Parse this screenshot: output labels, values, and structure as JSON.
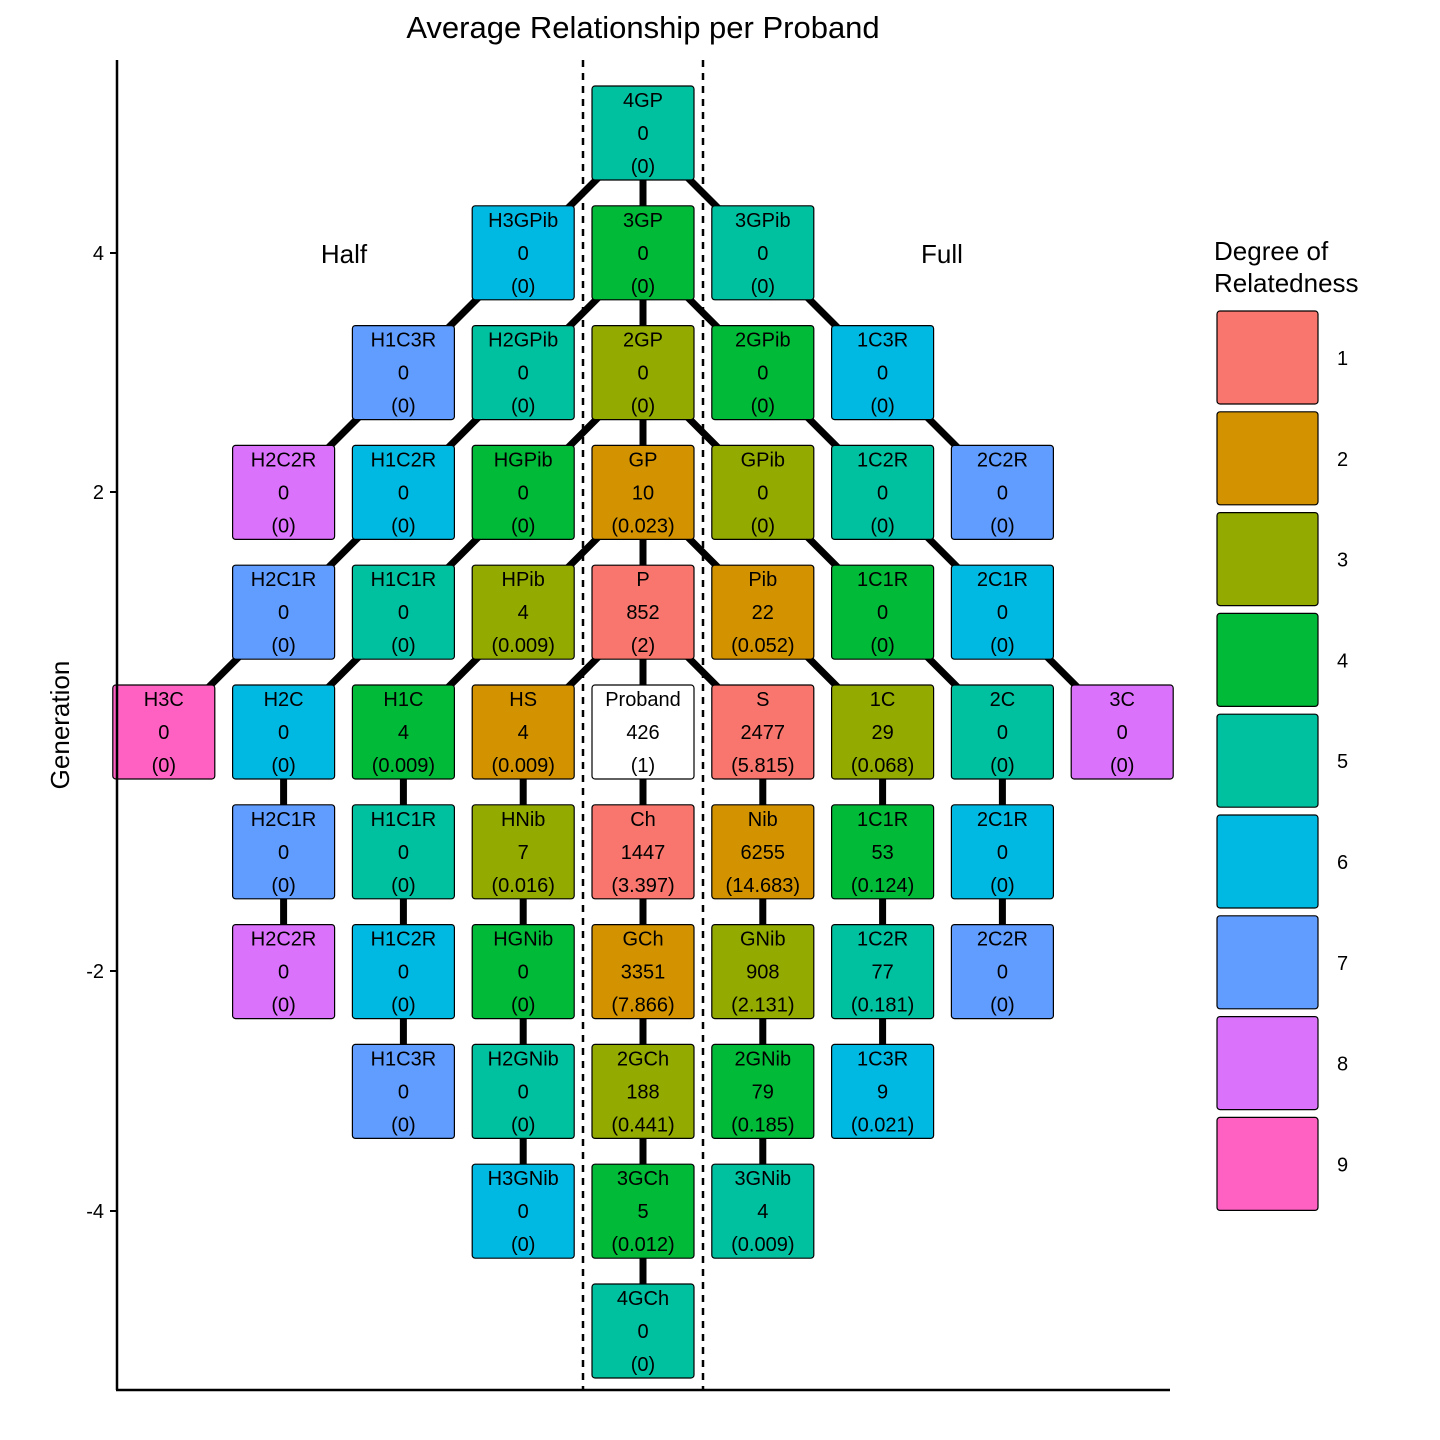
{
  "chart_data": {
    "type": "diagram",
    "title": "Average Relationship per Proband",
    "ylabel": "Generation",
    "y_ticks": [
      "4",
      "2",
      "-2",
      "-4"
    ],
    "side_labels": {
      "left": "Half",
      "right": "Full"
    },
    "legend": {
      "title_line1": "Degree of",
      "title_line2": "Relatedness",
      "items": [
        {
          "degree": 1,
          "label": "1",
          "color": "#F8766D"
        },
        {
          "degree": 2,
          "label": "2",
          "color": "#D39200"
        },
        {
          "degree": 3,
          "label": "3",
          "color": "#93AA00"
        },
        {
          "degree": 4,
          "label": "4",
          "color": "#00BA38"
        },
        {
          "degree": 5,
          "label": "5",
          "color": "#00C19F"
        },
        {
          "degree": 6,
          "label": "6",
          "color": "#00B9E3"
        },
        {
          "degree": 7,
          "label": "7",
          "color": "#619CFF"
        },
        {
          "degree": 8,
          "label": "8",
          "color": "#DB72FB"
        },
        {
          "degree": 9,
          "label": "9",
          "color": "#FF61C3"
        }
      ]
    },
    "nodes": [
      {
        "id": "4GP",
        "label": "4GP",
        "count": "0",
        "avg": "(0)",
        "col": 0,
        "gen": 5,
        "degree": 5
      },
      {
        "id": "H3GPib",
        "label": "H3GPib",
        "count": "0",
        "avg": "(0)",
        "col": -1,
        "gen": 4,
        "degree": 6
      },
      {
        "id": "3GP",
        "label": "3GP",
        "count": "0",
        "avg": "(0)",
        "col": 0,
        "gen": 4,
        "degree": 4
      },
      {
        "id": "3GPib",
        "label": "3GPib",
        "count": "0",
        "avg": "(0)",
        "col": 1,
        "gen": 4,
        "degree": 5
      },
      {
        "id": "H1C3R_up",
        "label": "H1C3R",
        "count": "0",
        "avg": "(0)",
        "col": -2,
        "gen": 3,
        "degree": 7
      },
      {
        "id": "H2GPib",
        "label": "H2GPib",
        "count": "0",
        "avg": "(0)",
        "col": -1,
        "gen": 3,
        "degree": 5
      },
      {
        "id": "2GP",
        "label": "2GP",
        "count": "0",
        "avg": "(0)",
        "col": 0,
        "gen": 3,
        "degree": 3
      },
      {
        "id": "2GPib",
        "label": "2GPib",
        "count": "0",
        "avg": "(0)",
        "col": 1,
        "gen": 3,
        "degree": 4
      },
      {
        "id": "1C3R_up",
        "label": "1C3R",
        "count": "0",
        "avg": "(0)",
        "col": 2,
        "gen": 3,
        "degree": 6
      },
      {
        "id": "H2C2R_up",
        "label": "H2C2R",
        "count": "0",
        "avg": "(0)",
        "col": -3,
        "gen": 2,
        "degree": 8
      },
      {
        "id": "H1C2R_up",
        "label": "H1C2R",
        "count": "0",
        "avg": "(0)",
        "col": -2,
        "gen": 2,
        "degree": 6
      },
      {
        "id": "HGPib",
        "label": "HGPib",
        "count": "0",
        "avg": "(0)",
        "col": -1,
        "gen": 2,
        "degree": 4
      },
      {
        "id": "GP",
        "label": "GP",
        "count": "10",
        "avg": "(0.023)",
        "col": 0,
        "gen": 2,
        "degree": 2
      },
      {
        "id": "GPib",
        "label": "GPib",
        "count": "0",
        "avg": "(0)",
        "col": 1,
        "gen": 2,
        "degree": 3
      },
      {
        "id": "1C2R_up",
        "label": "1C2R",
        "count": "0",
        "avg": "(0)",
        "col": 2,
        "gen": 2,
        "degree": 5
      },
      {
        "id": "2C2R_up",
        "label": "2C2R",
        "count": "0",
        "avg": "(0)",
        "col": 3,
        "gen": 2,
        "degree": 7
      },
      {
        "id": "H2C1R_up",
        "label": "H2C1R",
        "count": "0",
        "avg": "(0)",
        "col": -3,
        "gen": 1,
        "degree": 7
      },
      {
        "id": "H1C1R_up",
        "label": "H1C1R",
        "count": "0",
        "avg": "(0)",
        "col": -2,
        "gen": 1,
        "degree": 5
      },
      {
        "id": "HPib",
        "label": "HPib",
        "count": "4",
        "avg": "(0.009)",
        "col": -1,
        "gen": 1,
        "degree": 3
      },
      {
        "id": "P",
        "label": "P",
        "count": "852",
        "avg": "(2)",
        "col": 0,
        "gen": 1,
        "degree": 1
      },
      {
        "id": "Pib",
        "label": "Pib",
        "count": "22",
        "avg": "(0.052)",
        "col": 1,
        "gen": 1,
        "degree": 2
      },
      {
        "id": "1C1R_up",
        "label": "1C1R",
        "count": "0",
        "avg": "(0)",
        "col": 2,
        "gen": 1,
        "degree": 4
      },
      {
        "id": "2C1R_up",
        "label": "2C1R",
        "count": "0",
        "avg": "(0)",
        "col": 3,
        "gen": 1,
        "degree": 6
      },
      {
        "id": "H3C",
        "label": "H3C",
        "count": "0",
        "avg": "(0)",
        "col": -4,
        "gen": 0,
        "degree": 9
      },
      {
        "id": "H2C",
        "label": "H2C",
        "count": "0",
        "avg": "(0)",
        "col": -3,
        "gen": 0,
        "degree": 6
      },
      {
        "id": "H1C",
        "label": "H1C",
        "count": "4",
        "avg": "(0.009)",
        "col": -2,
        "gen": 0,
        "degree": 4
      },
      {
        "id": "HS",
        "label": "HS",
        "count": "4",
        "avg": "(0.009)",
        "col": -1,
        "gen": 0,
        "degree": 2
      },
      {
        "id": "Proband",
        "label": "Proband",
        "count": "426",
        "avg": "(1)",
        "col": 0,
        "gen": 0,
        "degree": 0
      },
      {
        "id": "S",
        "label": "S",
        "count": "2477",
        "avg": "(5.815)",
        "col": 1,
        "gen": 0,
        "degree": 1
      },
      {
        "id": "1C",
        "label": "1C",
        "count": "29",
        "avg": "(0.068)",
        "col": 2,
        "gen": 0,
        "degree": 3
      },
      {
        "id": "2C",
        "label": "2C",
        "count": "0",
        "avg": "(0)",
        "col": 3,
        "gen": 0,
        "degree": 5
      },
      {
        "id": "3C",
        "label": "3C",
        "count": "0",
        "avg": "(0)",
        "col": 4,
        "gen": 0,
        "degree": 8
      },
      {
        "id": "H2C1R_dn",
        "label": "H2C1R",
        "count": "0",
        "avg": "(0)",
        "col": -3,
        "gen": -1,
        "degree": 7
      },
      {
        "id": "H1C1R_dn",
        "label": "H1C1R",
        "count": "0",
        "avg": "(0)",
        "col": -2,
        "gen": -1,
        "degree": 5
      },
      {
        "id": "HNib",
        "label": "HNib",
        "count": "7",
        "avg": "(0.016)",
        "col": -1,
        "gen": -1,
        "degree": 3
      },
      {
        "id": "Ch",
        "label": "Ch",
        "count": "1447",
        "avg": "(3.397)",
        "col": 0,
        "gen": -1,
        "degree": 1
      },
      {
        "id": "Nib",
        "label": "Nib",
        "count": "6255",
        "avg": "(14.683)",
        "col": 1,
        "gen": -1,
        "degree": 2
      },
      {
        "id": "1C1R_dn",
        "label": "1C1R",
        "count": "53",
        "avg": "(0.124)",
        "col": 2,
        "gen": -1,
        "degree": 4
      },
      {
        "id": "2C1R_dn",
        "label": "2C1R",
        "count": "0",
        "avg": "(0)",
        "col": 3,
        "gen": -1,
        "degree": 6
      },
      {
        "id": "H2C2R_dn",
        "label": "H2C2R",
        "count": "0",
        "avg": "(0)",
        "col": -3,
        "gen": -2,
        "degree": 8
      },
      {
        "id": "H1C2R_dn",
        "label": "H1C2R",
        "count": "0",
        "avg": "(0)",
        "col": -2,
        "gen": -2,
        "degree": 6
      },
      {
        "id": "HGNib",
        "label": "HGNib",
        "count": "0",
        "avg": "(0)",
        "col": -1,
        "gen": -2,
        "degree": 4
      },
      {
        "id": "GCh",
        "label": "GCh",
        "count": "3351",
        "avg": "(7.866)",
        "col": 0,
        "gen": -2,
        "degree": 2
      },
      {
        "id": "GNib",
        "label": "GNib",
        "count": "908",
        "avg": "(2.131)",
        "col": 1,
        "gen": -2,
        "degree": 3
      },
      {
        "id": "1C2R_dn",
        "label": "1C2R",
        "count": "77",
        "avg": "(0.181)",
        "col": 2,
        "gen": -2,
        "degree": 5
      },
      {
        "id": "2C2R_dn",
        "label": "2C2R",
        "count": "0",
        "avg": "(0)",
        "col": 3,
        "gen": -2,
        "degree": 7
      },
      {
        "id": "H1C3R_dn",
        "label": "H1C3R",
        "count": "0",
        "avg": "(0)",
        "col": -2,
        "gen": -3,
        "degree": 7
      },
      {
        "id": "H2GNib",
        "label": "H2GNib",
        "count": "0",
        "avg": "(0)",
        "col": -1,
        "gen": -3,
        "degree": 5
      },
      {
        "id": "2GCh",
        "label": "2GCh",
        "count": "188",
        "avg": "(0.441)",
        "col": 0,
        "gen": -3,
        "degree": 3
      },
      {
        "id": "2GNib",
        "label": "2GNib",
        "count": "79",
        "avg": "(0.185)",
        "col": 1,
        "gen": -3,
        "degree": 4
      },
      {
        "id": "1C3R_dn",
        "label": "1C3R",
        "count": "9",
        "avg": "(0.021)",
        "col": 2,
        "gen": -3,
        "degree": 6
      },
      {
        "id": "H3GNib",
        "label": "H3GNib",
        "count": "0",
        "avg": "(0)",
        "col": -1,
        "gen": -4,
        "degree": 6
      },
      {
        "id": "3GCh",
        "label": "3GCh",
        "count": "5",
        "avg": "(0.012)",
        "col": 0,
        "gen": -4,
        "degree": 4
      },
      {
        "id": "3GNib",
        "label": "3GNib",
        "count": "4",
        "avg": "(0.009)",
        "col": 1,
        "gen": -4,
        "degree": 5
      },
      {
        "id": "4GCh",
        "label": "4GCh",
        "count": "0",
        "avg": "(0)",
        "col": 0,
        "gen": -5,
        "degree": 5
      }
    ],
    "edges": [
      [
        "4GP",
        "3GP"
      ],
      [
        "4GP",
        "H3GPib"
      ],
      [
        "4GP",
        "3GPib"
      ],
      [
        "3GP",
        "2GP"
      ],
      [
        "3GP",
        "H2GPib"
      ],
      [
        "3GP",
        "2GPib"
      ],
      [
        "H3GPib",
        "H1C3R_up"
      ],
      [
        "3GPib",
        "1C3R_up"
      ],
      [
        "2GP",
        "GP"
      ],
      [
        "2GP",
        "HGPib"
      ],
      [
        "2GP",
        "GPib"
      ],
      [
        "H2GPib",
        "H1C2R_up"
      ],
      [
        "2GPib",
        "1C2R_up"
      ],
      [
        "H1C3R_up",
        "H2C2R_up"
      ],
      [
        "1C3R_up",
        "2C2R_up"
      ],
      [
        "GP",
        "P"
      ],
      [
        "GP",
        "HPib"
      ],
      [
        "GP",
        "Pib"
      ],
      [
        "HGPib",
        "H1C1R_up"
      ],
      [
        "GPib",
        "1C1R_up"
      ],
      [
        "H1C2R_up",
        "H2C1R_up"
      ],
      [
        "1C2R_up",
        "2C1R_up"
      ],
      [
        "P",
        "Proband"
      ],
      [
        "P",
        "HS"
      ],
      [
        "P",
        "S"
      ],
      [
        "HPib",
        "H1C"
      ],
      [
        "Pib",
        "1C"
      ],
      [
        "H1C1R_up",
        "H2C"
      ],
      [
        "1C1R_up",
        "2C"
      ],
      [
        "H2C1R_up",
        "H3C"
      ],
      [
        "2C1R_up",
        "3C"
      ],
      [
        "Proband",
        "Ch"
      ],
      [
        "HS",
        "HNib"
      ],
      [
        "S",
        "Nib"
      ],
      [
        "H1C",
        "H1C1R_dn"
      ],
      [
        "1C",
        "1C1R_dn"
      ],
      [
        "H2C",
        "H2C1R_dn"
      ],
      [
        "2C",
        "2C1R_dn"
      ],
      [
        "Ch",
        "GCh"
      ],
      [
        "HNib",
        "HGNib"
      ],
      [
        "Nib",
        "GNib"
      ],
      [
        "H1C1R_dn",
        "H1C2R_dn"
      ],
      [
        "1C1R_dn",
        "1C2R_dn"
      ],
      [
        "H2C1R_dn",
        "H2C2R_dn"
      ],
      [
        "2C1R_dn",
        "2C2R_dn"
      ],
      [
        "GCh",
        "2GCh"
      ],
      [
        "HGNib",
        "H2GNib"
      ],
      [
        "GNib",
        "2GNib"
      ],
      [
        "H1C2R_dn",
        "H1C3R_dn"
      ],
      [
        "1C2R_dn",
        "1C3R_dn"
      ],
      [
        "2GCh",
        "3GCh"
      ],
      [
        "H2GNib",
        "H3GNib"
      ],
      [
        "2GNib",
        "3GNib"
      ],
      [
        "3GCh",
        "4GCh"
      ]
    ]
  }
}
